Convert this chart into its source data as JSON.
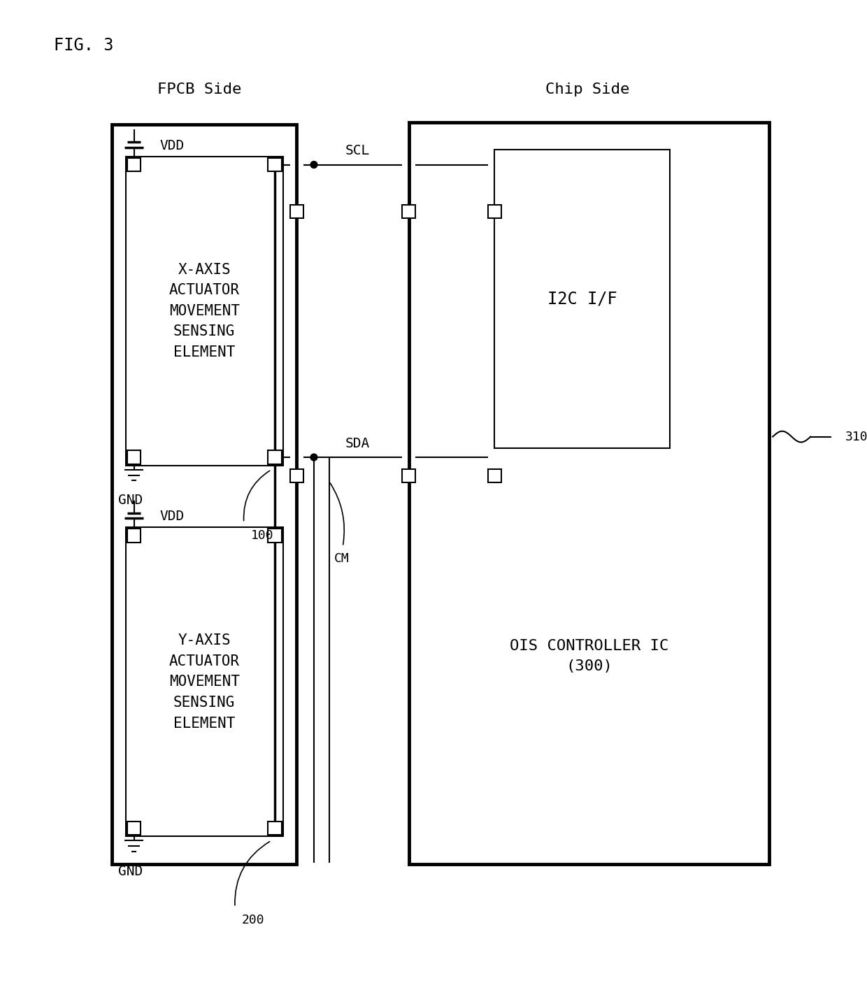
{
  "fig_label": "FIG. 3",
  "fpcb_label": "FPCB Side",
  "chip_label": "Chip Side",
  "x_axis_text": "X-AXIS\nACTUATOR\nMOVEMENT\nSENSING\nELEMENT",
  "y_axis_text": "Y-AXIS\nACTUATOR\nMOVEMENT\nSENSING\nELEMENT",
  "i2c_text": "I2C I/F",
  "ois_text": "OIS CONTROLLER IC\n(300)",
  "scl_text": "SCL",
  "sda_text": "SDA",
  "vdd_text": "VDD",
  "gnd_text": "GND",
  "ref_100": "100",
  "ref_200": "200",
  "ref_cm": "CM",
  "ref_310": "310",
  "bg_color": "#ffffff",
  "line_color": "#000000",
  "fig_w": 12.4,
  "fig_h": 14.26,
  "dpi": 100
}
